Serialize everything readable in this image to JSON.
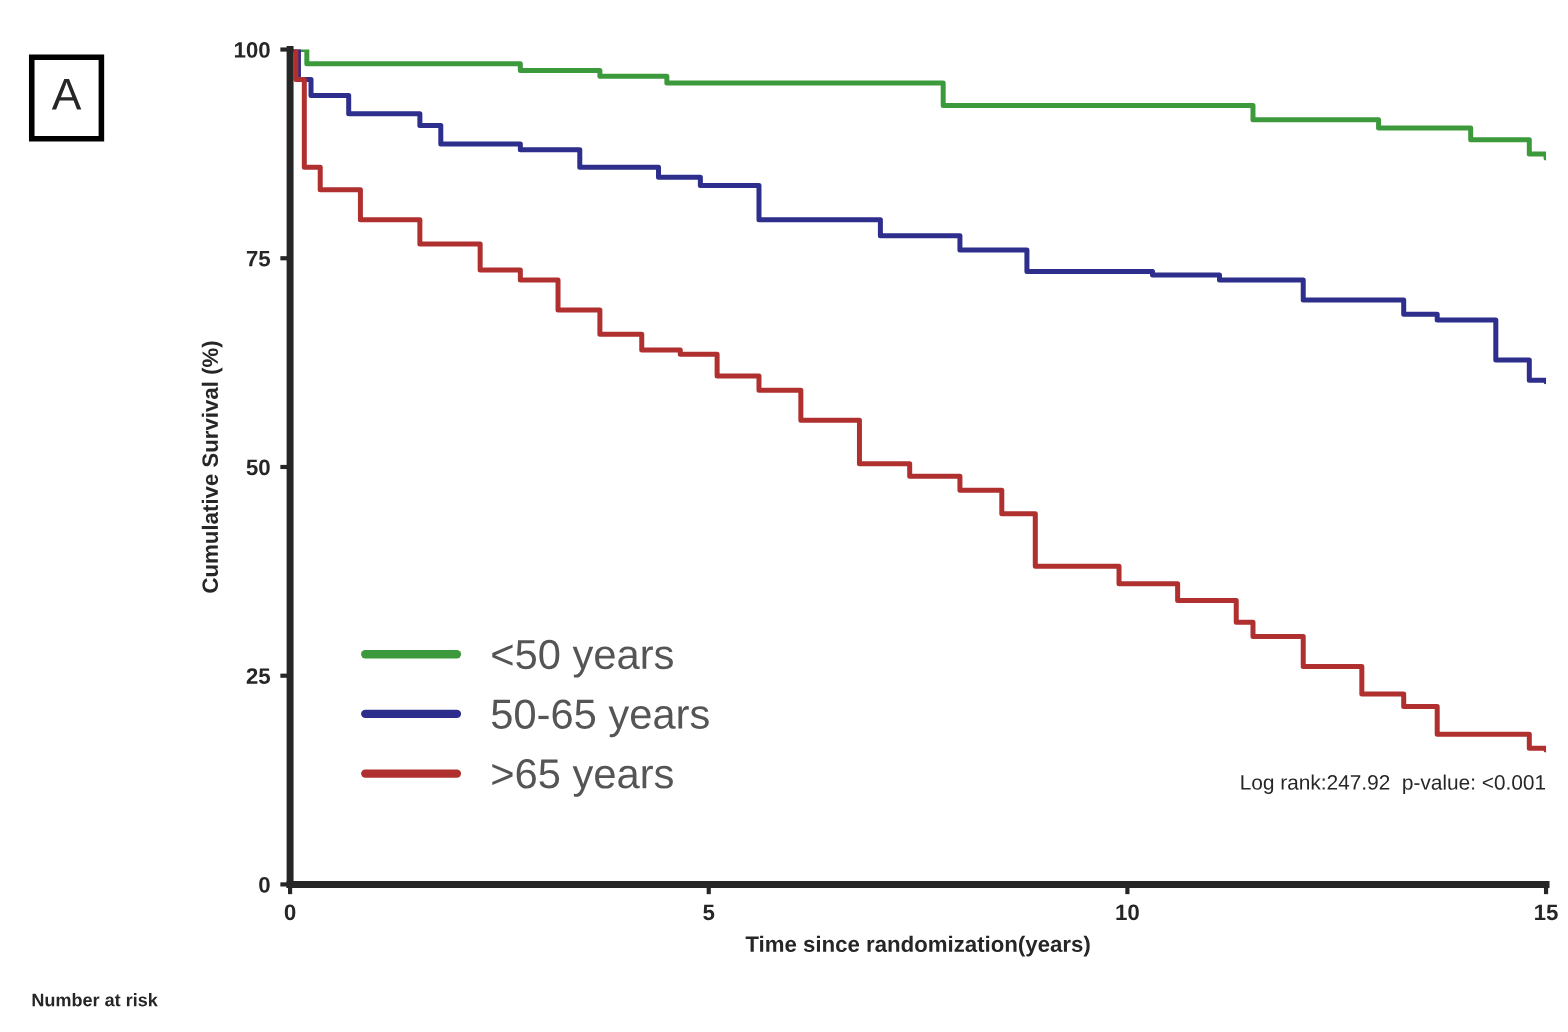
{
  "chart_data": {
    "type": "step",
    "xlabel": "Time since randomization(years)",
    "ylabel": "Cumulative Survival (%)",
    "xlim": [
      0,
      15
    ],
    "xticks": [
      0,
      5,
      10,
      15
    ],
    "ylim": [
      0,
      100
    ],
    "yticks": [
      0,
      25,
      50,
      75,
      100
    ],
    "grid": false,
    "legend": "bottom left",
    "annotations": [
      "A",
      "Log rank:247.92  p-value: <0.001",
      "Number at risk"
    ],
    "series": [
      {
        "name": "<50 years",
        "color": "#3c9a3c",
        "x": [
          0,
          0.2,
          2.75,
          3.7,
          4.5,
          7.8,
          11.5,
          13.0,
          14.1,
          14.8,
          15
        ],
        "values": [
          100,
          98.3,
          97.5,
          96.8,
          96.0,
          93.3,
          91.6,
          90.6,
          89.2,
          87.5,
          87.0
        ]
      },
      {
        "name": "50-65 years",
        "color": "#2e2e8c",
        "x": [
          0,
          0.1,
          0.25,
          0.7,
          1.55,
          1.8,
          2.75,
          3.46,
          4.4,
          4.9,
          5.6,
          7.05,
          8.0,
          8.8,
          10.3,
          11.1,
          12.1,
          13.3,
          13.7,
          14.4,
          14.8,
          15
        ],
        "values": [
          100,
          96.4,
          94.5,
          92.3,
          90.9,
          88.7,
          88.0,
          85.9,
          84.7,
          83.7,
          79.6,
          77.7,
          76.0,
          73.4,
          73.0,
          72.4,
          70.0,
          68.3,
          67.6,
          62.8,
          60.4,
          60.2
        ]
      },
      {
        "name": ">65 years",
        "color": "#b03030",
        "x": [
          0,
          0.07,
          0.17,
          0.36,
          0.84,
          1.55,
          2.27,
          2.75,
          3.2,
          3.7,
          4.2,
          4.66,
          5.1,
          5.6,
          6.1,
          6.8,
          7.4,
          8.0,
          8.5,
          8.9,
          9.9,
          10.6,
          11.3,
          11.5,
          12.1,
          12.8,
          13.3,
          13.7,
          14.4,
          14.8,
          15
        ],
        "values": [
          100,
          96.4,
          85.9,
          83.2,
          79.6,
          76.7,
          73.6,
          72.4,
          68.8,
          65.9,
          64.0,
          63.5,
          60.9,
          59.2,
          55.6,
          50.4,
          48.9,
          47.2,
          44.4,
          38.1,
          36.0,
          34.0,
          31.4,
          29.7,
          26.1,
          22.8,
          21.3,
          18.0,
          18.0,
          16.3,
          16.1
        ]
      }
    ]
  }
}
